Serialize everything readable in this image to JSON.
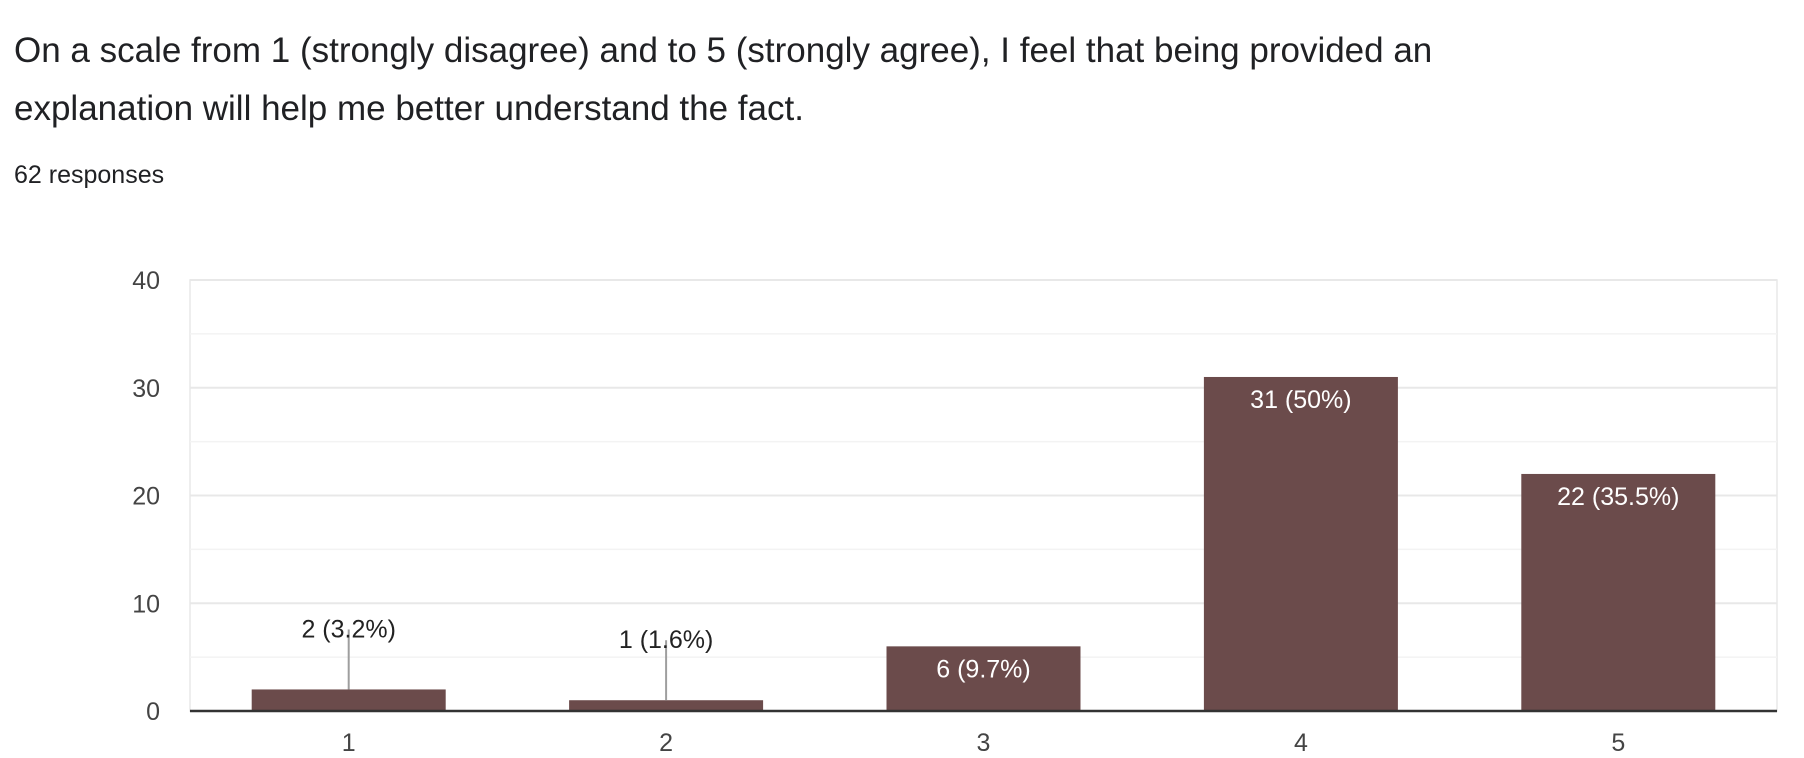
{
  "question": {
    "title": "On a scale from 1 (strongly disagree) and to 5 (strongly agree), I feel that being provided an explanation will help me better understand the fact.",
    "response_count": "62 responses"
  },
  "colors": {
    "bar": "#6b4b4b",
    "grid_major": "#e8e8e8",
    "grid_minor": "#f3f3f3",
    "axis": "#333333",
    "label_inside": "#ffffff",
    "label_outside": "#222222",
    "leader_line": "#9e9e9e"
  },
  "chart_data": {
    "type": "bar",
    "categories": [
      "1",
      "2",
      "3",
      "4",
      "5"
    ],
    "values": [
      2,
      1,
      6,
      31,
      22
    ],
    "data_labels": [
      "2 (3.2%)",
      "1 (1.6%)",
      "6 (9.7%)",
      "31 (50%)",
      "22 (35.5%)"
    ],
    "ylim": [
      0,
      40
    ],
    "y_ticks": [
      0,
      10,
      20,
      30,
      40
    ],
    "grid": true,
    "legend": "none"
  }
}
